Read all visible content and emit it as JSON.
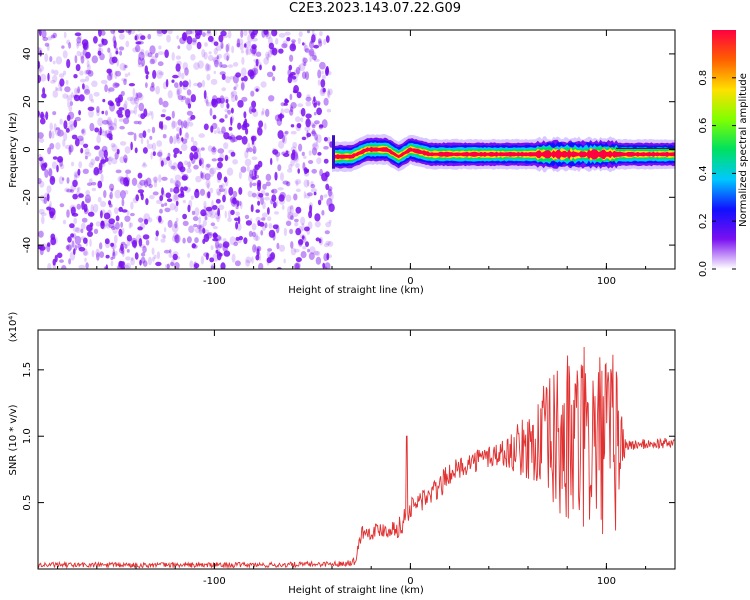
{
  "figure_title": "C2E3.2023.143.07.22.G09",
  "colors": {
    "snr_line": "#e03030",
    "scatter_dots": "#7a10f0",
    "axis": "#000000"
  },
  "chart_data": [
    {
      "type": "heatmap",
      "title": "",
      "xlabel": "Height of straight line (km)",
      "ylabel": "Frequency (Hz)",
      "xlim": [
        -190,
        135
      ],
      "ylim": [
        -50,
        50
      ],
      "x_ticks": [
        -100,
        0,
        100
      ],
      "x_tick_labels": [
        "-100",
        "0",
        "100"
      ],
      "y_ticks": [
        -40,
        -20,
        0,
        20,
        40
      ],
      "y_tick_labels": [
        "-40",
        "-20",
        "0",
        "20",
        "40"
      ],
      "noise_region": {
        "x_range": [
          -190,
          -40
        ],
        "y_range": [
          -50,
          50
        ],
        "description_color": "purple"
      },
      "signal_band": {
        "x_range": [
          -40,
          135
        ],
        "center_frequency": [
          {
            "x": -40,
            "y": -3
          },
          {
            "x": -30,
            "y": -3
          },
          {
            "x": -22,
            "y": 0
          },
          {
            "x": -12,
            "y": 0
          },
          {
            "x": -6,
            "y": -3
          },
          {
            "x": 0,
            "y": 0
          },
          {
            "x": 5,
            "y": -1
          },
          {
            "x": 10,
            "y": -2
          },
          {
            "x": 135,
            "y": -2
          }
        ],
        "disturbed_x_range": [
          65,
          105
        ]
      },
      "colorbar": {
        "label": "Normalized spectral amplitude",
        "range": [
          0.0,
          1.0
        ],
        "ticks": [
          0.0,
          0.2,
          0.4,
          0.6,
          0.8
        ],
        "tick_labels": [
          "0.0",
          "0.2",
          "0.4",
          "0.6",
          "0.8"
        ],
        "colors": [
          "#ffffff",
          "#7a10f0",
          "#1010ff",
          "#00c8ff",
          "#00e060",
          "#80ff00",
          "#ffe000",
          "#ff6000",
          "#ff0040"
        ]
      },
      "grid": false
    },
    {
      "type": "line",
      "title": "",
      "xlabel": "Height of straight line (km)",
      "ylabel": "SNR (10 * v/v)",
      "scale_label": "(x10⁴)",
      "xlim": [
        -190,
        135
      ],
      "ylim": [
        0,
        1.8
      ],
      "x_ticks": [
        -100,
        0,
        100
      ],
      "x_tick_labels": [
        "-100",
        "0",
        "100"
      ],
      "y_ticks": [
        0.5,
        1.0,
        1.5
      ],
      "y_tick_labels": [
        "0.5",
        "1.0",
        "1.5"
      ],
      "series": [
        {
          "name": "",
          "x": [
            -190,
            -150,
            -110,
            -70,
            -35,
            -28,
            -25,
            -20,
            -15,
            -10,
            -5,
            -2,
            0,
            5,
            10,
            15,
            20,
            30,
            40,
            50,
            55,
            60,
            65,
            70,
            75,
            80,
            85,
            90,
            95,
            100,
            105,
            110,
            120,
            135
          ],
          "y": [
            0.03,
            0.03,
            0.03,
            0.03,
            0.04,
            0.06,
            0.28,
            0.28,
            0.3,
            0.3,
            0.32,
            0.4,
            0.45,
            0.52,
            0.55,
            0.62,
            0.72,
            0.8,
            0.85,
            0.88,
            0.9,
            0.92,
            0.95,
            0.95,
            0.95,
            0.95,
            0.95,
            0.95,
            0.95,
            0.95,
            0.95,
            0.93,
            0.94,
            0.95
          ],
          "spread": [
            0.02,
            0.02,
            0.02,
            0.02,
            0.02,
            0.03,
            0.06,
            0.06,
            0.06,
            0.07,
            0.08,
            0.1,
            0.08,
            0.1,
            0.08,
            0.1,
            0.08,
            0.08,
            0.1,
            0.12,
            0.2,
            0.25,
            0.35,
            0.5,
            0.6,
            0.7,
            0.7,
            0.75,
            0.7,
            0.7,
            0.7,
            0.04,
            0.04,
            0.04
          ]
        }
      ],
      "grid": false
    }
  ]
}
